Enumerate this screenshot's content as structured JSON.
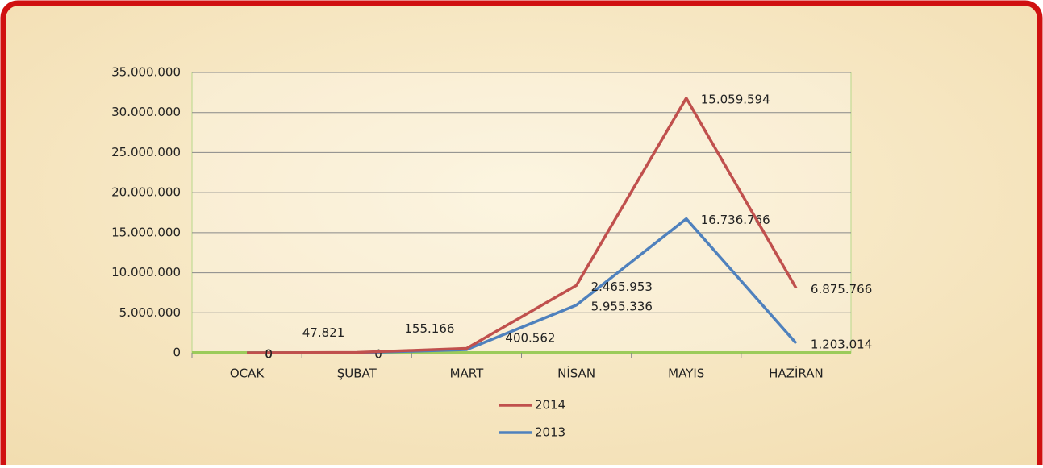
{
  "chart_data": {
    "type": "line",
    "stacked": true,
    "categories": [
      "OCAK",
      "ŞUBAT",
      "MART",
      "NİSAN",
      "MAYIS",
      "HAZİRAN"
    ],
    "series": [
      {
        "name": "2013",
        "color": "#4f81bd",
        "values": [
          0,
          0,
          400562,
          5955336,
          16736766,
          1203014
        ],
        "value_labels": [
          "0",
          "0",
          "400.562",
          "5.955.336",
          "16.736.766",
          "1.203.014"
        ]
      },
      {
        "name": "2014",
        "color": "#c0504d",
        "values": [
          0,
          47821,
          155166,
          2465953,
          15059594,
          6875766
        ],
        "value_labels": [
          "0",
          "47.821",
          "155.166",
          "2.465.953",
          "15.059.594",
          "6.875.766"
        ]
      }
    ],
    "ylim": [
      0,
      35000000
    ],
    "yticks": [
      0,
      {
        "value": 5000000,
        "label": "5.000.000"
      },
      {
        "value": 10000000,
        "label": "10.000.000"
      },
      {
        "value": 15000000,
        "label": "15.000.000"
      },
      {
        "value": 20000000,
        "label": "20.000.000"
      },
      {
        "value": 25000000,
        "label": "25.000.000"
      },
      {
        "value": 30000000,
        "label": "30.000.000"
      },
      {
        "value": 35000000,
        "label": "35.000.000"
      }
    ],
    "grid": true,
    "legend": "bottom"
  }
}
